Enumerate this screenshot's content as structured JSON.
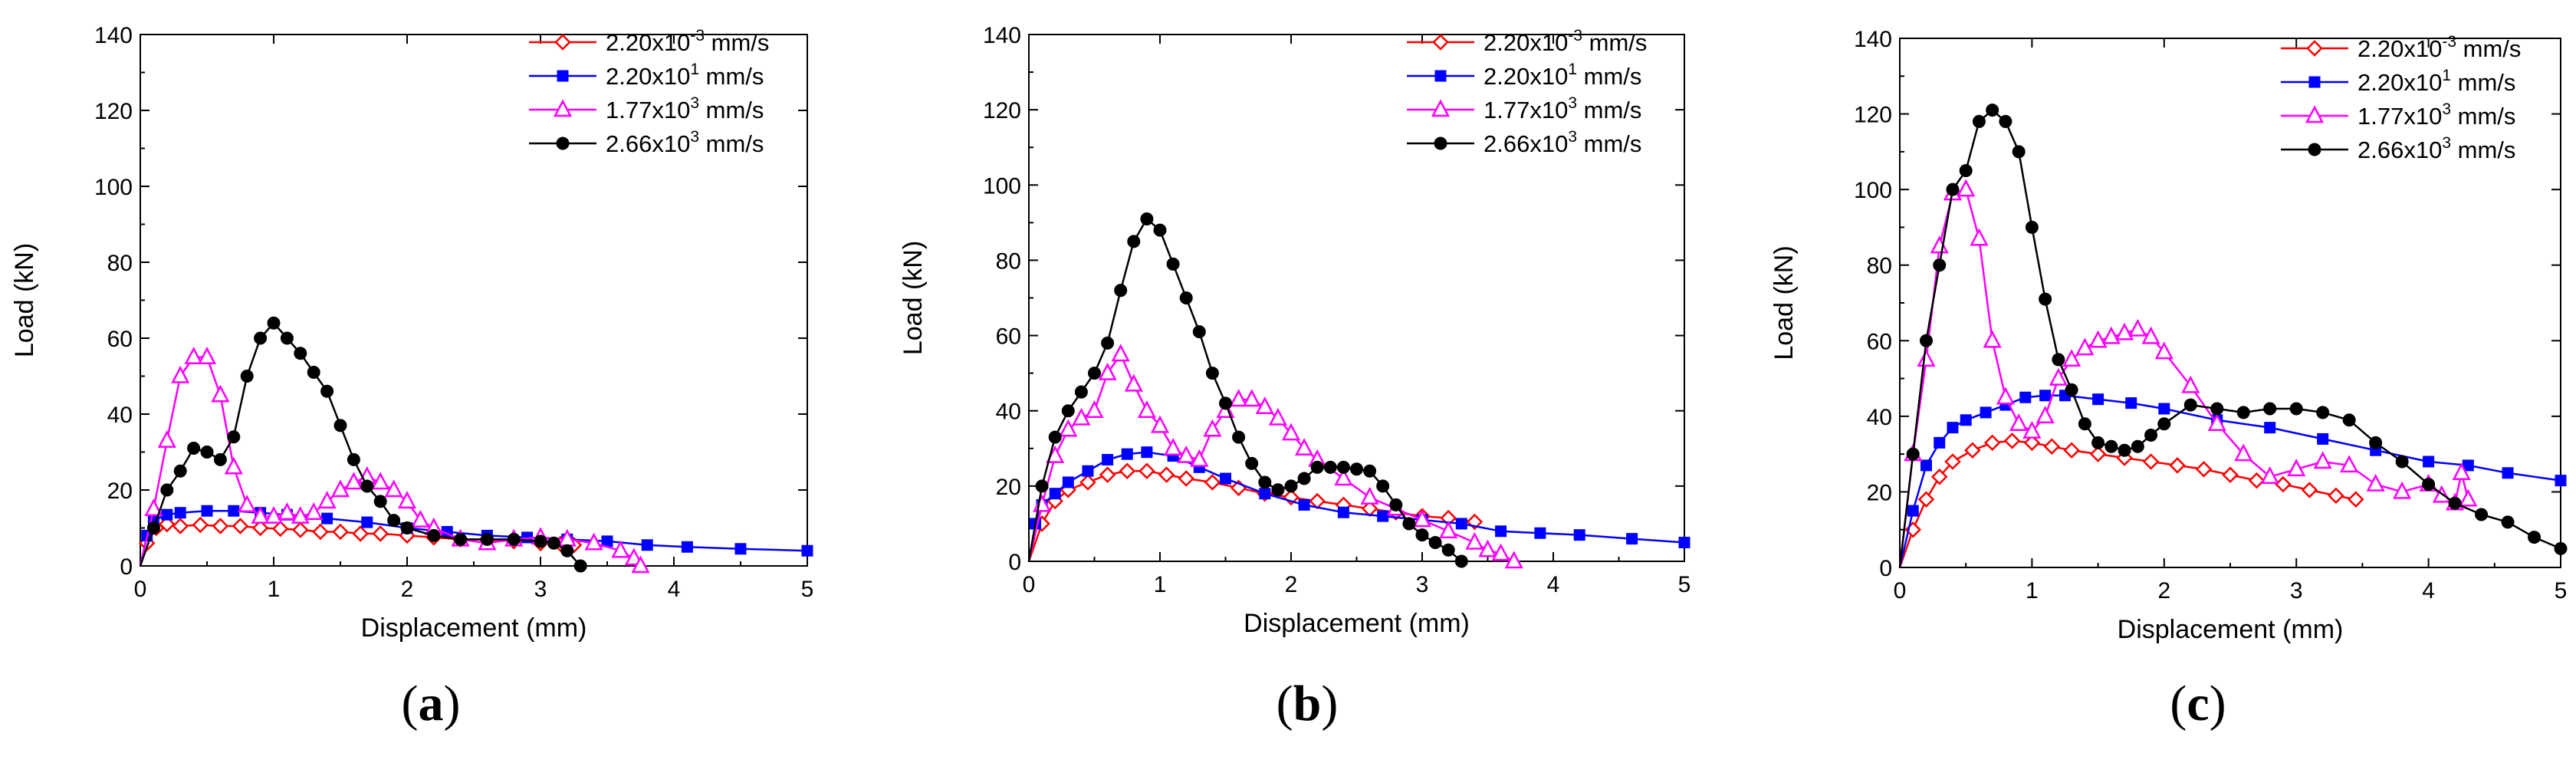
{
  "chart_data": [
    {
      "type": "line",
      "panel_label": "a",
      "xlabel": "Displacement (mm)",
      "ylabel": "Load (kN)",
      "xlim": [
        0,
        5
      ],
      "ylim": [
        0,
        140
      ],
      "xticks": [
        0,
        1,
        2,
        3,
        4,
        5
      ],
      "yticks": [
        0,
        20,
        40,
        60,
        80,
        100,
        120,
        140
      ],
      "grid": false,
      "legend_position": "top-right",
      "series": [
        {
          "name": "2.20x10^-3 mm/s",
          "color": "#ff0000",
          "marker": "diamond",
          "x": [
            0,
            0.05,
            0.12,
            0.2,
            0.3,
            0.45,
            0.6,
            0.75,
            0.9,
            1.05,
            1.2,
            1.35,
            1.5,
            1.65,
            1.8,
            2.0,
            2.2,
            2.4,
            2.6,
            2.8,
            3.0,
            3.15,
            3.25
          ],
          "y": [
            0,
            6,
            10,
            11,
            10.5,
            10.8,
            10.5,
            10.5,
            10,
            9.8,
            9.5,
            9,
            9,
            8.5,
            8.5,
            8,
            7.5,
            7,
            7,
            6.5,
            6,
            5.8,
            5.5
          ]
        },
        {
          "name": "2.20x10^1 mm/s",
          "color": "#0000ff",
          "marker": "square",
          "x": [
            0,
            0.05,
            0.1,
            0.2,
            0.3,
            0.5,
            0.7,
            0.9,
            1.1,
            1.4,
            1.7,
            2.0,
            2.3,
            2.6,
            2.9,
            3.2,
            3.5,
            3.8,
            4.1,
            4.5,
            5.0
          ],
          "y": [
            0,
            8,
            12,
            13.5,
            14,
            14.5,
            14.5,
            14,
            13.5,
            12.5,
            11.5,
            10,
            9,
            8,
            7.5,
            7,
            6.5,
            5.5,
            5,
            4.5,
            4
          ]
        },
        {
          "name": "1.77x10^3 mm/s",
          "color": "#ff00ff",
          "marker": "triangle",
          "x": [
            0,
            0.1,
            0.2,
            0.3,
            0.4,
            0.5,
            0.6,
            0.7,
            0.8,
            0.9,
            1.0,
            1.1,
            1.2,
            1.3,
            1.4,
            1.5,
            1.6,
            1.7,
            1.8,
            1.9,
            2.0,
            2.1,
            2.2,
            2.4,
            2.6,
            2.8,
            3.0,
            3.2,
            3.4,
            3.6,
            3.7,
            3.75
          ],
          "y": [
            0,
            15,
            33,
            50,
            55,
            55,
            45,
            26,
            16,
            13,
            13,
            14,
            13,
            14,
            17,
            20,
            22,
            23.5,
            22,
            20,
            17,
            12,
            10,
            7,
            6,
            7,
            7.5,
            7,
            6,
            4,
            2,
            0
          ]
        },
        {
          "name": "2.66x10^3 mm/s",
          "color": "#000000",
          "marker": "circle",
          "x": [
            0,
            0.1,
            0.2,
            0.3,
            0.4,
            0.5,
            0.6,
            0.7,
            0.8,
            0.9,
            1.0,
            1.1,
            1.2,
            1.3,
            1.4,
            1.5,
            1.6,
            1.7,
            1.8,
            1.9,
            2.0,
            2.2,
            2.4,
            2.6,
            2.8,
            3.0,
            3.1,
            3.2,
            3.3
          ],
          "y": [
            0,
            10,
            20,
            25,
            31,
            30,
            28,
            34,
            50,
            60,
            64,
            60,
            56,
            51,
            46,
            37,
            28,
            21,
            17,
            12,
            10,
            8,
            7,
            7,
            7,
            6.5,
            6,
            4,
            0
          ]
        }
      ]
    },
    {
      "type": "line",
      "panel_label": "b",
      "xlabel": "Displacement (mm)",
      "ylabel": "Load (kN)",
      "xlim": [
        0,
        5
      ],
      "ylim": [
        0,
        140
      ],
      "xticks": [
        0,
        1,
        2,
        3,
        4,
        5
      ],
      "yticks": [
        0,
        20,
        40,
        60,
        80,
        100,
        120,
        140
      ],
      "grid": false,
      "legend_position": "top-right",
      "series": [
        {
          "name": "2.20x10^-3 mm/s",
          "color": "#ff0000",
          "marker": "diamond",
          "x": [
            0,
            0.1,
            0.2,
            0.3,
            0.45,
            0.6,
            0.75,
            0.9,
            1.05,
            1.2,
            1.4,
            1.6,
            1.8,
            2.0,
            2.2,
            2.4,
            2.6,
            2.8,
            3.0,
            3.2,
            3.4
          ],
          "y": [
            0,
            10,
            16,
            19,
            21,
            23,
            24,
            24,
            23,
            22,
            21,
            19.5,
            18,
            17,
            16,
            15,
            14,
            13,
            12,
            11.5,
            10.5
          ]
        },
        {
          "name": "2.20x10^1 mm/s",
          "color": "#0000ff",
          "marker": "square",
          "x": [
            0,
            0.05,
            0.1,
            0.2,
            0.3,
            0.45,
            0.6,
            0.75,
            0.9,
            1.1,
            1.3,
            1.5,
            1.8,
            2.1,
            2.4,
            2.7,
            3.0,
            3.3,
            3.6,
            3.9,
            4.2,
            4.6,
            5.0
          ],
          "y": [
            0,
            10,
            15,
            18,
            21,
            24,
            27,
            28.5,
            29,
            28,
            25,
            22,
            18,
            15,
            13,
            12,
            11,
            10,
            8,
            7.5,
            7,
            6,
            5
          ]
        },
        {
          "name": "1.77x10^3 mm/s",
          "color": "#ff00ff",
          "marker": "triangle",
          "x": [
            0,
            0.1,
            0.2,
            0.3,
            0.4,
            0.5,
            0.6,
            0.7,
            0.8,
            0.9,
            1.0,
            1.1,
            1.2,
            1.3,
            1.4,
            1.5,
            1.6,
            1.7,
            1.8,
            1.9,
            2.0,
            2.1,
            2.2,
            2.4,
            2.6,
            2.8,
            3.0,
            3.2,
            3.4,
            3.5,
            3.6,
            3.7
          ],
          "y": [
            0,
            15,
            28,
            35,
            38,
            40,
            50,
            55,
            47,
            40,
            36,
            30,
            28,
            27,
            35,
            40,
            43,
            43,
            41,
            38,
            34,
            30,
            27,
            22,
            17,
            14,
            11,
            8,
            5,
            3,
            2,
            0
          ]
        },
        {
          "name": "2.66x10^3 mm/s",
          "color": "#000000",
          "marker": "circle",
          "x": [
            0,
            0.1,
            0.2,
            0.3,
            0.4,
            0.5,
            0.6,
            0.7,
            0.8,
            0.9,
            1.0,
            1.1,
            1.2,
            1.3,
            1.4,
            1.5,
            1.6,
            1.7,
            1.8,
            1.9,
            2.0,
            2.1,
            2.2,
            2.3,
            2.4,
            2.5,
            2.6,
            2.7,
            2.8,
            2.9,
            3.0,
            3.1,
            3.2,
            3.3
          ],
          "y": [
            0,
            20,
            33,
            40,
            45,
            50,
            58,
            72,
            85,
            91,
            88,
            79,
            70,
            61,
            50,
            42,
            33,
            26,
            21,
            19,
            20,
            22,
            25,
            25,
            25,
            24.5,
            24,
            20,
            15,
            10,
            7,
            5,
            3,
            0
          ]
        }
      ]
    },
    {
      "type": "line",
      "panel_label": "c",
      "xlabel": "Displacement (mm)",
      "ylabel": "Load (kN)",
      "xlim": [
        0,
        5
      ],
      "ylim": [
        0,
        140
      ],
      "xticks": [
        0,
        1,
        2,
        3,
        4,
        5
      ],
      "yticks": [
        0,
        20,
        40,
        60,
        80,
        100,
        120,
        140
      ],
      "grid": false,
      "legend_position": "top-right",
      "series": [
        {
          "name": "2.20x10^-3 mm/s",
          "color": "#ff0000",
          "marker": "diamond",
          "x": [
            0,
            0.1,
            0.2,
            0.3,
            0.4,
            0.55,
            0.7,
            0.85,
            1.0,
            1.15,
            1.3,
            1.5,
            1.7,
            1.9,
            2.1,
            2.3,
            2.5,
            2.7,
            2.9,
            3.1,
            3.3,
            3.45
          ],
          "y": [
            0,
            10,
            18,
            24,
            28,
            31,
            33,
            33.5,
            33,
            32,
            31,
            30,
            29,
            28,
            27,
            26,
            24.5,
            23,
            22,
            20.5,
            19,
            18
          ]
        },
        {
          "name": "2.20x10^1 mm/s",
          "color": "#0000ff",
          "marker": "square",
          "x": [
            0,
            0.1,
            0.2,
            0.3,
            0.4,
            0.5,
            0.65,
            0.8,
            0.95,
            1.1,
            1.25,
            1.5,
            1.75,
            2.0,
            2.4,
            2.8,
            3.2,
            3.6,
            4.0,
            4.3,
            4.6,
            5.0
          ],
          "y": [
            0,
            15,
            27,
            33,
            37,
            39,
            41,
            43,
            45,
            45.5,
            45.5,
            44.5,
            43.5,
            42,
            39,
            37,
            34,
            31,
            28,
            27,
            25,
            23
          ]
        },
        {
          "name": "1.77x10^3 mm/s",
          "color": "#ff00ff",
          "marker": "triangle",
          "x": [
            0,
            0.1,
            0.2,
            0.3,
            0.4,
            0.5,
            0.6,
            0.7,
            0.8,
            0.9,
            1.0,
            1.1,
            1.2,
            1.3,
            1.4,
            1.5,
            1.6,
            1.7,
            1.8,
            1.9,
            2.0,
            2.2,
            2.4,
            2.6,
            2.8,
            3.0,
            3.2,
            3.4,
            3.6,
            3.8,
            4.0,
            4.1,
            4.2,
            4.25,
            4.3
          ],
          "y": [
            0,
            30,
            55,
            85,
            99,
            100,
            87,
            60,
            45,
            38,
            36,
            40,
            50,
            55,
            58,
            60,
            61,
            62,
            63,
            61,
            57,
            48,
            38,
            30,
            24,
            26,
            28,
            27,
            22,
            20,
            22,
            19,
            17,
            25,
            18
          ]
        },
        {
          "name": "2.66x10^3 mm/s",
          "color": "#000000",
          "marker": "circle",
          "x": [
            0,
            0.1,
            0.2,
            0.3,
            0.4,
            0.5,
            0.6,
            0.7,
            0.8,
            0.9,
            1.0,
            1.1,
            1.2,
            1.3,
            1.4,
            1.5,
            1.6,
            1.7,
            1.8,
            1.9,
            2.0,
            2.2,
            2.4,
            2.6,
            2.8,
            3.0,
            3.2,
            3.4,
            3.6,
            3.8,
            4.0,
            4.2,
            4.4,
            4.6,
            4.8,
            5.0
          ],
          "y": [
            0,
            30,
            60,
            80,
            100,
            105,
            118,
            121,
            118,
            110,
            90,
            71,
            55,
            47,
            38,
            33,
            32,
            31,
            32,
            35,
            38,
            43,
            42,
            41,
            42,
            42,
            41,
            39,
            33,
            28,
            22,
            17,
            14,
            12,
            8,
            5
          ]
        }
      ]
    }
  ]
}
